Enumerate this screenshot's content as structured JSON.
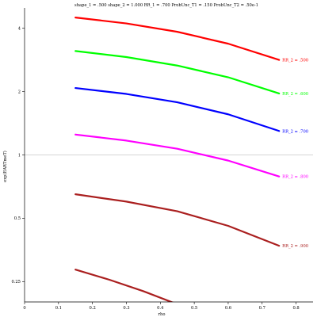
{
  "chart_data": {
    "type": "line",
    "title": "shape_1 = .500  shape_2 = 1.000  RR_1 = .700  ProbUnc_T1 = .150  ProbUnc_T2 = .50e-1",
    "xlabel": "rho",
    "ylabel": "exp(EARTmeT)",
    "xlim": [
      0,
      0.85
    ],
    "ylim": [
      0.2,
      5.0
    ],
    "yscale": "log",
    "reference_line_y": 1,
    "x_ticks": [
      0,
      0.1,
      0.2,
      0.3,
      0.4,
      0.5,
      0.6,
      0.7,
      0.8
    ],
    "x_tick_labels": [
      "0",
      "0.1",
      "0.2",
      "0.3",
      "0.4",
      "0.5",
      "0.6",
      "0.7",
      "0.8"
    ],
    "y_ticks": [
      0.25,
      0.5,
      1,
      2,
      4
    ],
    "y_tick_labels": [
      "0.25",
      "0.5",
      "1",
      "2",
      "4"
    ],
    "series": [
      {
        "name": "RR_2 = .500",
        "color": "#ff0000",
        "x": [
          0.15,
          0.3,
          0.45,
          0.6,
          0.75
        ],
        "y": [
          4.5,
          4.22,
          3.85,
          3.38,
          2.83
        ]
      },
      {
        "name": "RR_2 = .600",
        "color": "#00ff00",
        "x": [
          0.15,
          0.3,
          0.45,
          0.6,
          0.75
        ],
        "y": [
          3.12,
          2.92,
          2.66,
          2.34,
          1.96
        ]
      },
      {
        "name": "RR_2 = .700",
        "color": "#0000ff",
        "x": [
          0.15,
          0.3,
          0.45,
          0.6,
          0.75
        ],
        "y": [
          2.08,
          1.95,
          1.78,
          1.56,
          1.3
        ]
      },
      {
        "name": "RR_2 = .800",
        "color": "#ff00ff",
        "x": [
          0.15,
          0.3,
          0.45,
          0.6,
          0.75
        ],
        "y": [
          1.25,
          1.17,
          1.07,
          0.94,
          0.79
        ]
      },
      {
        "name": "RR_2 = .900",
        "color": "#aa1f1f",
        "x": [
          0.15,
          0.3,
          0.45,
          0.6,
          0.75
        ],
        "y": [
          0.65,
          0.6,
          0.54,
          0.46,
          0.37
        ]
      },
      {
        "name": "",
        "color": "#aa1f1f",
        "x": [
          0.15,
          0.25,
          0.35,
          0.45
        ],
        "y": [
          0.285,
          0.255,
          0.225,
          0.195
        ]
      }
    ]
  }
}
